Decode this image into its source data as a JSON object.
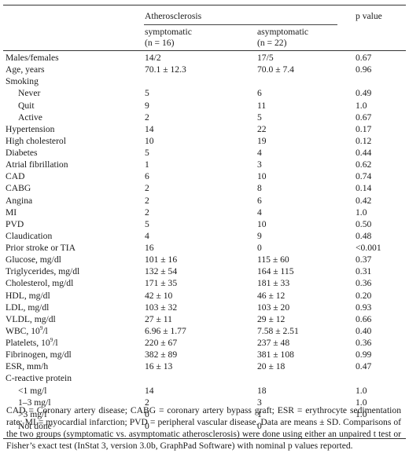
{
  "table": {
    "header": {
      "group": "Atherosclerosis",
      "symptomatic": "symptomatic",
      "symptomatic_n": "(n = 16)",
      "asymptomatic": "asymptomatic",
      "asymptomatic_n": "(n = 22)",
      "pvalue": "p value"
    },
    "rows": [
      {
        "label": "Males/females",
        "sym": "14/2",
        "asym": "17/5",
        "p": "0.67",
        "indent": false
      },
      {
        "label": "Age, years",
        "sym": "70.1 ± 12.3",
        "asym": "70.0 ± 7.4",
        "p": "0.96",
        "indent": false
      },
      {
        "label": "Smoking",
        "sym": "",
        "asym": "",
        "p": "",
        "indent": false
      },
      {
        "label": "Never",
        "sym": "5",
        "asym": "6",
        "p": "0.49",
        "indent": true
      },
      {
        "label": "Quit",
        "sym": "9",
        "asym": "11",
        "p": "1.0",
        "indent": true
      },
      {
        "label": "Active",
        "sym": "2",
        "asym": "5",
        "p": "0.67",
        "indent": true
      },
      {
        "label": "Hypertension",
        "sym": "14",
        "asym": "22",
        "p": "0.17",
        "indent": false
      },
      {
        "label": "High cholesterol",
        "sym": "10",
        "asym": "19",
        "p": "0.12",
        "indent": false
      },
      {
        "label": "Diabetes",
        "sym": "5",
        "asym": "4",
        "p": "0.44",
        "indent": false
      },
      {
        "label": "Atrial fibrillation",
        "sym": "1",
        "asym": "3",
        "p": "0.62",
        "indent": false
      },
      {
        "label": "CAD",
        "sym": "6",
        "asym": "10",
        "p": "0.74",
        "indent": false
      },
      {
        "label": "CABG",
        "sym": "2",
        "asym": "8",
        "p": "0.14",
        "indent": false
      },
      {
        "label": "Angina",
        "sym": "2",
        "asym": "6",
        "p": "0.42",
        "indent": false
      },
      {
        "label": "MI",
        "sym": "2",
        "asym": "4",
        "p": "1.0",
        "indent": false
      },
      {
        "label": "PVD",
        "sym": "5",
        "asym": "10",
        "p": "0.50",
        "indent": false
      },
      {
        "label": "Claudication",
        "sym": "4",
        "asym": "9",
        "p": "0.48",
        "indent": false
      },
      {
        "label": "Prior stroke or TIA",
        "sym": "16",
        "asym": "0",
        "p": "<0.001",
        "indent": false
      },
      {
        "label": "Glucose, mg/dl",
        "sym": "101 ± 16",
        "asym": "115 ± 60",
        "p": "0.37",
        "indent": false
      },
      {
        "label": "Triglycerides, mg/dl",
        "sym": "132 ± 54",
        "asym": "164 ± 115",
        "p": "0.31",
        "indent": false
      },
      {
        "label": "Cholesterol, mg/dl",
        "sym": "171 ± 35",
        "asym": "181 ± 33",
        "p": "0.36",
        "indent": false
      },
      {
        "label": "HDL, mg/dl",
        "sym": "42 ± 10",
        "asym": "46 ± 12",
        "p": "0.20",
        "indent": false
      },
      {
        "label": "LDL, mg/dl",
        "sym": "103 ± 32",
        "asym": "103 ± 20",
        "p": "0.93",
        "indent": false
      },
      {
        "label": "VLDL, mg/dl",
        "sym": "27 ± 11",
        "asym": "29 ± 12",
        "p": "0.66",
        "indent": false
      },
      {
        "label": "WBC, 10",
        "sup": "9",
        "label_tail": "/l",
        "sym": "6.96 ± 1.77",
        "asym": "7.58 ± 2.51",
        "p": "0.40",
        "indent": false
      },
      {
        "label": "Platelets, 10",
        "sup": "9",
        "label_tail": "/l",
        "sym": "220 ± 67",
        "asym": "237 ± 48",
        "p": "0.36",
        "indent": false
      },
      {
        "label": "Fibrinogen, mg/dl",
        "sym": "382 ± 89",
        "asym": "381 ± 108",
        "p": "0.99",
        "indent": false
      },
      {
        "label": "ESR, mm/h",
        "sym": "16 ± 13",
        "asym": "20 ± 18",
        "p": "0.47",
        "indent": false
      },
      {
        "label": "C-reactive protein",
        "sym": "",
        "asym": "",
        "p": "",
        "indent": false
      },
      {
        "label": "<1 mg/l",
        "sym": "14",
        "asym": "18",
        "p": "1.0",
        "indent": true
      },
      {
        "label": "1–3 mg/l",
        "sym": "2",
        "asym": "3",
        "p": "1.0",
        "indent": true
      },
      {
        "label": ">3 mg/l",
        "sym": "0",
        "asym": "1",
        "p": "1.0",
        "indent": true
      },
      {
        "label": "Not done",
        "sym": "0",
        "asym": "0",
        "p": "",
        "indent": true
      }
    ]
  },
  "footnote": "CAD = Coronary artery disease; CABG = coronary artery bypass graft; ESR = erythrocyte sedimentation rate; MI = myocardial infarction; PVD = peripheral vascular disease. Data are means ± SD. Comparisons of the two groups (symptomatic vs. asymptomatic atherosclerosis) were done using either an unpaired t test or Fisher’s exact test (InStat 3, version 3.0b, GraphPad Software) with nominal p values reported."
}
